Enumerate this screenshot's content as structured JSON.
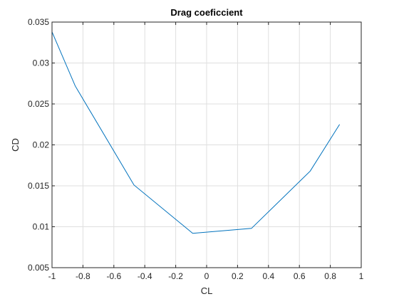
{
  "chart_data": {
    "type": "line",
    "title": "Drag coeficcient",
    "xlabel": "CL",
    "ylabel": "CD",
    "xlim": [
      -1,
      1
    ],
    "ylim": [
      0.005,
      0.035
    ],
    "grid": true,
    "x_ticks": [
      "-1",
      "-0.8",
      "-0.6",
      "-0.4",
      "-0.2",
      "0",
      "0.2",
      "0.4",
      "0.6",
      "0.8",
      "1"
    ],
    "y_ticks": [
      "0.005",
      "0.01",
      "0.015",
      "0.02",
      "0.025",
      "0.03",
      "0.035"
    ],
    "series": [
      {
        "color": "#0072bd",
        "x": [
          -1.0,
          -0.85,
          -0.47,
          -0.09,
          0.29,
          0.67,
          0.86
        ],
        "y": [
          0.0338,
          0.0272,
          0.0151,
          0.0092,
          0.0098,
          0.0168,
          0.0225
        ]
      }
    ]
  }
}
